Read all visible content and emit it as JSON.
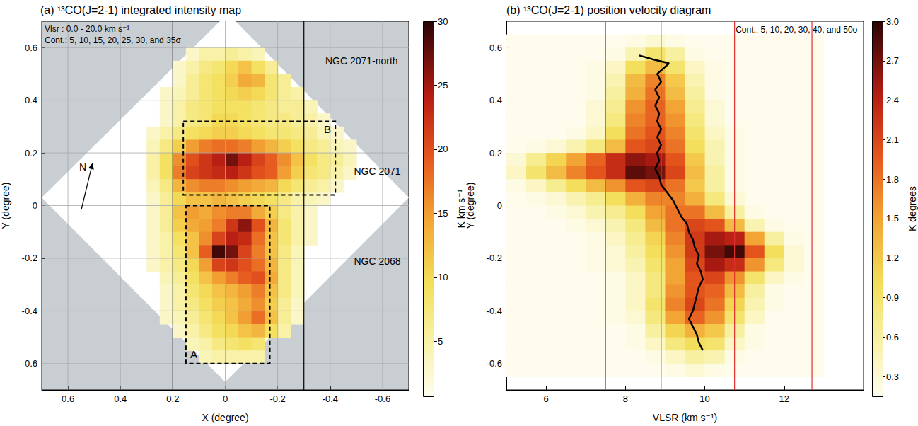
{
  "chart_data": [
    {
      "type": "heatmap",
      "title": "(a) ¹³CO(J=2-1) integrated intensity map",
      "x_label": "X (degree)",
      "y_label": "Y (degree)",
      "xlim": [
        0.7,
        -0.7
      ],
      "xticks": [
        0.6,
        0.4,
        0.2,
        0,
        -0.2,
        -0.4,
        -0.6
      ],
      "ylim": [
        -0.7,
        0.7
      ],
      "yticks": [
        -0.6,
        -0.4,
        -0.2,
        0,
        0.2,
        0.4,
        0.6
      ],
      "grid": true,
      "x": [
        0.275,
        0.225,
        0.175,
        0.125,
        0.075,
        0.025,
        -0.025,
        -0.075,
        -0.125,
        -0.175,
        -0.225,
        -0.275,
        -0.325,
        -0.375,
        -0.425,
        -0.475
      ],
      "y": [
        0.575,
        0.525,
        0.475,
        0.425,
        0.375,
        0.325,
        0.275,
        0.225,
        0.175,
        0.125,
        0.075,
        0.025,
        -0.025,
        -0.075,
        -0.125,
        -0.175,
        -0.225,
        -0.275,
        -0.325,
        -0.375,
        -0.425,
        -0.475,
        -0.525,
        -0.575
      ],
      "values": [
        [
          null,
          null,
          null,
          3,
          5,
          5,
          6,
          5,
          4,
          null,
          null,
          null,
          null,
          null,
          null,
          null
        ],
        [
          null,
          null,
          3,
          5,
          7,
          8,
          10,
          12,
          9,
          6,
          null,
          null,
          null,
          null,
          null,
          null
        ],
        [
          null,
          null,
          3,
          6,
          8,
          9,
          11,
          14,
          13,
          8,
          6,
          null,
          null,
          null,
          null,
          null
        ],
        [
          null,
          3,
          4,
          6,
          8,
          9,
          10,
          11,
          10,
          8,
          6,
          5,
          null,
          null,
          null,
          null
        ],
        [
          null,
          3,
          5,
          7,
          8,
          9,
          9,
          9,
          8,
          7,
          6,
          6,
          4,
          null,
          null,
          null
        ],
        [
          null,
          3,
          5,
          7,
          8,
          10,
          10,
          9,
          8,
          7,
          7,
          6,
          5,
          3,
          null,
          null
        ],
        [
          3,
          5,
          7,
          9,
          10,
          11,
          11,
          10,
          9,
          8,
          8,
          7,
          6,
          4,
          3,
          null
        ],
        [
          4,
          7,
          11,
          15,
          17,
          18,
          18,
          17,
          15,
          13,
          11,
          9,
          7,
          6,
          4,
          3
        ],
        [
          5,
          9,
          16,
          20,
          22,
          24,
          27,
          24,
          21,
          19,
          16,
          12,
          9,
          7,
          6,
          4
        ],
        [
          5,
          9,
          17,
          21,
          22,
          23,
          24,
          22,
          20,
          19,
          15,
          11,
          8,
          7,
          5,
          3
        ],
        [
          4,
          7,
          13,
          16,
          17,
          17,
          16,
          15,
          14,
          13,
          10,
          8,
          6,
          5,
          3,
          null
        ],
        [
          3,
          6,
          10,
          12,
          12,
          13,
          12,
          11,
          10,
          9,
          7,
          5,
          4,
          3,
          null,
          null
        ],
        [
          3,
          6,
          12,
          15,
          14,
          16,
          17,
          17,
          14,
          11,
          7,
          5,
          3,
          null,
          null,
          null
        ],
        [
          3,
          6,
          11,
          14,
          15,
          17,
          22,
          26,
          20,
          13,
          8,
          5,
          3,
          null,
          null,
          null
        ],
        [
          3,
          5,
          9,
          12,
          16,
          21,
          24,
          23,
          18,
          12,
          8,
          5,
          3,
          null,
          null,
          null
        ],
        [
          3,
          5,
          8,
          12,
          19,
          29,
          27,
          21,
          17,
          12,
          7,
          4,
          null,
          null,
          null,
          null
        ],
        [
          3,
          5,
          7,
          10,
          15,
          21,
          22,
          20,
          18,
          13,
          7,
          4,
          null,
          null,
          null,
          null
        ],
        [
          null,
          4,
          6,
          9,
          12,
          15,
          17,
          19,
          20,
          14,
          7,
          4,
          null,
          null,
          null,
          null
        ],
        [
          null,
          3,
          5,
          8,
          10,
          12,
          13,
          15,
          17,
          12,
          7,
          4,
          null,
          null,
          null,
          null
        ],
        [
          null,
          3,
          5,
          7,
          9,
          11,
          12,
          14,
          16,
          11,
          6,
          3,
          null,
          null,
          null,
          null
        ],
        [
          null,
          3,
          4,
          6,
          8,
          10,
          12,
          15,
          18,
          12,
          6,
          3,
          null,
          null,
          null,
          null
        ],
        [
          null,
          null,
          3,
          5,
          7,
          9,
          10,
          12,
          13,
          9,
          5,
          null,
          null,
          null,
          null,
          null
        ],
        [
          null,
          null,
          null,
          4,
          5,
          7,
          8,
          9,
          8,
          null,
          null,
          null,
          null,
          null,
          null,
          null
        ],
        [
          null,
          null,
          null,
          null,
          4,
          5,
          5,
          5,
          5,
          null,
          null,
          null,
          null,
          null,
          null,
          null
        ]
      ],
      "colorbar": {
        "label": "K km s⁻¹",
        "range": [
          0.7,
          30
        ],
        "ticks": [
          5,
          10,
          15,
          20,
          25,
          30
        ]
      },
      "coverage": [
        [
          -0.01,
          0.73
        ],
        [
          0.7,
          0.03
        ],
        [
          0.0,
          -0.67
        ],
        [
          -0.7,
          0.03
        ]
      ],
      "vertical_lines": [
        {
          "x": 0.2,
          "color": "#000000"
        },
        {
          "x": -0.3,
          "color": "#000000"
        }
      ],
      "boxes": [
        {
          "label": "A",
          "x": [
            0.15,
            -0.17
          ],
          "y": [
            -0.6,
            0.0
          ],
          "label_x": 0.12,
          "label_y": -0.565
        },
        {
          "label": "B",
          "x": [
            0.16,
            -0.42
          ],
          "y": [
            0.04,
            0.32
          ],
          "label_x": -0.39,
          "label_y": 0.29
        }
      ],
      "labels": [
        {
          "text": "NGC 2071-north",
          "x": -0.52,
          "y": 0.55
        },
        {
          "text": "NGC 2071",
          "x": -0.58,
          "y": 0.13
        },
        {
          "text": "NGC 2068",
          "x": -0.58,
          "y": -0.21
        }
      ],
      "notes": [
        "Vlsr : 0.0 - 20.0 km s⁻¹",
        "Cont.: 5, 10, 15, 20, 25, 30, and 35σ"
      ],
      "north": "N"
    },
    {
      "type": "heatmap",
      "title": "(b) ¹³CO(J=2-1) position velocity diagram",
      "x_label": "VLSR (km s⁻¹)",
      "y_label": "Y (degree)",
      "xlim": [
        5,
        14
      ],
      "xticks": [
        6,
        8,
        10,
        12
      ],
      "ylim": [
        -0.7,
        0.7
      ],
      "yticks": [
        -0.6,
        -0.4,
        -0.2,
        0,
        0.2,
        0.4,
        0.6
      ],
      "grid": false,
      "x": [
        5.25,
        5.75,
        6.25,
        6.75,
        7.25,
        7.75,
        8.25,
        8.75,
        9.25,
        9.75,
        10.25,
        10.75,
        11.25,
        11.75,
        12.25,
        12.75
      ],
      "y": [
        0.625,
        0.575,
        0.525,
        0.475,
        0.425,
        0.375,
        0.325,
        0.275,
        0.225,
        0.175,
        0.125,
        0.075,
        0.025,
        -0.025,
        -0.075,
        -0.125,
        -0.175,
        -0.225,
        -0.275,
        -0.325,
        -0.375,
        -0.425,
        -0.475,
        -0.525,
        -0.575,
        -0.625
      ],
      "values": [
        [
          0,
          0,
          0,
          0,
          0,
          0,
          0.2,
          0.3,
          0.2,
          0,
          0,
          0,
          0,
          0,
          0,
          0
        ],
        [
          0,
          0,
          0,
          0,
          0,
          0.2,
          0.5,
          0.9,
          0.6,
          0.2,
          0,
          0,
          0,
          0,
          0,
          0
        ],
        [
          0,
          0,
          0,
          0,
          0.2,
          0.4,
          1.0,
          1.3,
          0.9,
          0.4,
          0.2,
          0,
          0,
          0,
          0,
          0
        ],
        [
          0,
          0,
          0,
          0,
          0.2,
          0.5,
          1.3,
          1.7,
          1.2,
          0.5,
          0.2,
          0,
          0,
          0,
          0,
          0
        ],
        [
          0,
          0,
          0,
          0,
          0.2,
          0.6,
          1.4,
          1.8,
          1.3,
          0.6,
          0.2,
          0,
          0,
          0,
          0,
          0
        ],
        [
          0,
          0,
          0,
          0,
          0.3,
          0.7,
          1.6,
          1.9,
          1.5,
          0.7,
          0.3,
          0,
          0,
          0,
          0,
          0
        ],
        [
          0,
          0,
          0,
          0,
          0.3,
          0.8,
          1.7,
          1.9,
          1.6,
          0.8,
          0.3,
          0,
          0,
          0,
          0,
          0
        ],
        [
          0,
          0,
          0,
          0.2,
          0.4,
          1.0,
          1.8,
          2.0,
          1.7,
          0.9,
          0.4,
          0.2,
          0,
          0,
          0,
          0
        ],
        [
          0,
          0.2,
          0.3,
          0.5,
          0.8,
          1.3,
          2.0,
          2.1,
          1.8,
          1.0,
          0.5,
          0.2,
          0,
          0,
          0,
          0
        ],
        [
          0.3,
          0.7,
          1.1,
          1.5,
          1.9,
          2.3,
          2.6,
          2.5,
          2.0,
          1.2,
          0.5,
          0.2,
          0,
          0,
          0,
          0
        ],
        [
          0.4,
          0.9,
          1.3,
          1.7,
          2.0,
          2.3,
          2.8,
          2.7,
          2.1,
          1.3,
          0.6,
          0.2,
          0,
          0,
          0,
          0
        ],
        [
          0.2,
          0.4,
          0.7,
          1.0,
          1.3,
          1.6,
          2.0,
          2.1,
          1.8,
          1.2,
          0.6,
          0.2,
          0,
          0,
          0,
          0
        ],
        [
          0,
          0.2,
          0.3,
          0.5,
          0.7,
          1.0,
          1.4,
          1.7,
          1.7,
          1.4,
          0.8,
          0.3,
          0,
          0,
          0,
          0
        ],
        [
          0,
          0,
          0.2,
          0.3,
          0.5,
          0.7,
          1.0,
          1.5,
          1.8,
          1.8,
          1.3,
          0.6,
          0.2,
          0,
          0,
          0
        ],
        [
          0,
          0,
          0,
          0.2,
          0.3,
          0.5,
          0.8,
          1.3,
          1.8,
          2.1,
          2.0,
          1.3,
          0.5,
          0.2,
          0,
          0
        ],
        [
          0,
          0,
          0,
          0,
          0.2,
          0.4,
          0.7,
          1.1,
          1.7,
          2.2,
          2.5,
          2.4,
          1.5,
          0.6,
          0.2,
          0
        ],
        [
          0,
          0,
          0,
          0,
          0.2,
          0.3,
          0.6,
          1.0,
          1.6,
          2.2,
          2.7,
          2.9,
          2.0,
          1.0,
          0.3,
          0
        ],
        [
          0,
          0,
          0,
          0,
          0.2,
          0.3,
          0.5,
          0.9,
          1.5,
          2.1,
          2.5,
          2.3,
          1.6,
          0.8,
          0.3,
          0
        ],
        [
          0,
          0,
          0,
          0,
          0,
          0.2,
          0.4,
          0.8,
          1.5,
          2.0,
          2.1,
          1.6,
          0.9,
          0.4,
          0.2,
          0
        ],
        [
          0,
          0,
          0,
          0,
          0,
          0.2,
          0.4,
          0.8,
          1.6,
          2.0,
          1.9,
          1.3,
          0.6,
          0.2,
          0,
          0
        ],
        [
          0,
          0,
          0,
          0,
          0,
          0.2,
          0.4,
          0.9,
          1.7,
          2.1,
          1.8,
          1.1,
          0.5,
          0.2,
          0,
          0
        ],
        [
          0,
          0,
          0,
          0,
          0,
          0.2,
          0.3,
          0.8,
          1.5,
          1.9,
          1.6,
          0.9,
          0.4,
          0,
          0,
          0
        ],
        [
          0,
          0,
          0,
          0,
          0,
          0,
          0.2,
          0.6,
          1.1,
          1.4,
          1.2,
          0.6,
          0.2,
          0,
          0,
          0
        ],
        [
          0,
          0,
          0,
          0,
          0,
          0,
          0.2,
          0.4,
          0.8,
          1.0,
          0.9,
          0.4,
          0.2,
          0,
          0,
          0
        ],
        [
          0,
          0,
          0,
          0,
          0,
          0,
          0,
          0.2,
          0.4,
          0.6,
          0.5,
          0.2,
          0,
          0,
          0,
          0
        ],
        [
          0,
          0,
          0,
          0,
          0,
          0,
          0,
          0,
          0.2,
          0.3,
          0.2,
          0,
          0,
          0,
          0,
          0
        ]
      ],
      "colorbar": {
        "label": "K degrees",
        "range": [
          0.15,
          3.0
        ],
        "ticks": [
          0.3,
          0.6,
          0.9,
          1.2,
          1.5,
          1.8,
          2.1,
          2.4,
          2.7,
          {
            "value": 3,
            "label": "3.0"
          }
        ]
      },
      "vertical_lines": [
        {
          "x": 7.5,
          "color": "#4a7fd4"
        },
        {
          "x": 8.9,
          "color": "#4a7fd4"
        },
        {
          "x": 10.75,
          "color": "#e03030"
        },
        {
          "x": 12.7,
          "color": "#e03030"
        }
      ],
      "curve": {
        "color": "#000000",
        "x": [
          8.35,
          8.7,
          9.1,
          8.95,
          8.8,
          8.9,
          8.75,
          8.85,
          8.75,
          8.85,
          8.8,
          8.9,
          8.8,
          8.9,
          8.8,
          8.85,
          8.75,
          8.85,
          8.9,
          9.05,
          9.2,
          9.3,
          9.4,
          9.55,
          9.6,
          9.7,
          9.75,
          9.85,
          9.8,
          9.9,
          9.95,
          9.85,
          9.8,
          9.75,
          9.7,
          9.6,
          9.7,
          9.8,
          9.85,
          9.95
        ],
        "y": [
          0.57,
          0.555,
          0.54,
          0.52,
          0.5,
          0.47,
          0.44,
          0.41,
          0.38,
          0.35,
          0.32,
          0.29,
          0.26,
          0.23,
          0.2,
          0.17,
          0.14,
          0.11,
          0.08,
          0.05,
          0.02,
          -0.01,
          -0.04,
          -0.07,
          -0.1,
          -0.13,
          -0.16,
          -0.19,
          -0.22,
          -0.25,
          -0.28,
          -0.31,
          -0.34,
          -0.37,
          -0.4,
          -0.43,
          -0.46,
          -0.49,
          -0.52,
          -0.55
        ]
      },
      "notes": [
        "Cont.: 5, 10, 20, 30, 40, and 50σ"
      ]
    }
  ]
}
